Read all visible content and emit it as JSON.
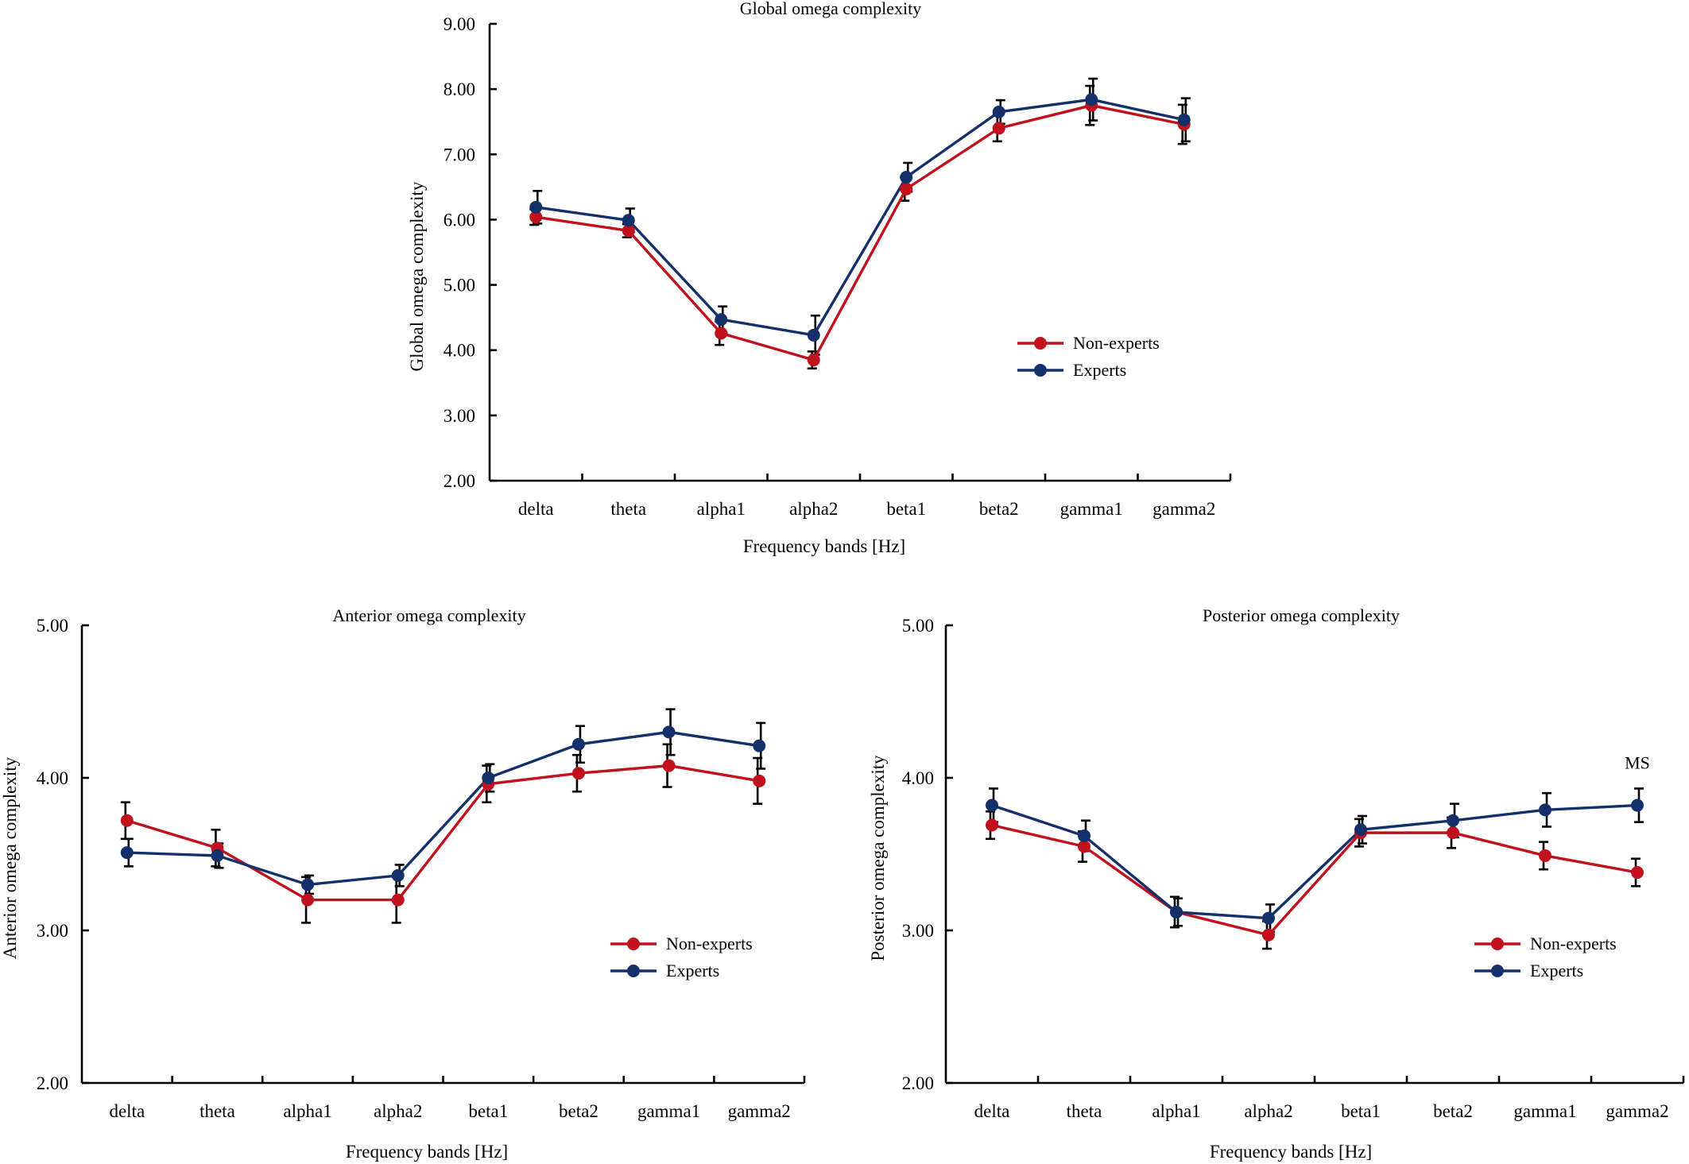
{
  "colors": {
    "non_experts": "#c0111d",
    "experts": "#13306a",
    "axis": "#000000",
    "error_bar": "#000000"
  },
  "chart_data": [
    {
      "id": "global",
      "type": "line",
      "title": "Global omega complexity",
      "xlabel": "Frequency bands [Hz]",
      "ylabel": "Global omega complexity",
      "categories": [
        "delta",
        "theta",
        "alpha1",
        "alpha2",
        "beta1",
        "beta2",
        "gamma1",
        "gamma2"
      ],
      "ylim": [
        2,
        9
      ],
      "yticks": [
        2,
        3,
        4,
        5,
        6,
        7,
        8,
        9
      ],
      "ytick_labels": [
        "2.00",
        "3.00",
        "4.00",
        "5.00",
        "6.00",
        "7.00",
        "8.00",
        "9.00"
      ],
      "legend_position": "right-middle",
      "series": [
        {
          "name": "Non-experts",
          "color_key": "non_experts",
          "values": [
            6.04,
            5.83,
            4.26,
            3.85,
            6.47,
            7.4,
            7.75,
            7.46
          ],
          "errors": [
            0.12,
            0.1,
            0.18,
            0.13,
            0.18,
            0.2,
            0.3,
            0.3
          ]
        },
        {
          "name": "Experts",
          "color_key": "experts",
          "values": [
            6.19,
            5.99,
            4.47,
            4.23,
            6.65,
            7.65,
            7.84,
            7.53
          ],
          "errors": [
            0.25,
            0.18,
            0.2,
            0.3,
            0.22,
            0.18,
            0.32,
            0.33
          ]
        }
      ],
      "annotations": []
    },
    {
      "id": "anterior",
      "type": "line",
      "title": "Anterior omega complexity",
      "xlabel": "Frequency bands [Hz]",
      "ylabel": "Anterior omega complexity",
      "categories": [
        "delta",
        "theta",
        "alpha1",
        "alpha2",
        "beta1",
        "beta2",
        "gamma1",
        "gamma2"
      ],
      "ylim": [
        2,
        5
      ],
      "yticks": [
        2,
        3,
        4,
        5
      ],
      "ytick_labels": [
        "2.00",
        "3.00",
        "4.00",
        "5.00"
      ],
      "legend_position": "right-middle",
      "series": [
        {
          "name": "Non-experts",
          "color_key": "non_experts",
          "values": [
            3.72,
            3.54,
            3.2,
            3.2,
            3.96,
            4.03,
            4.08,
            3.98
          ],
          "errors": [
            0.12,
            0.12,
            0.15,
            0.15,
            0.12,
            0.12,
            0.14,
            0.15
          ]
        },
        {
          "name": "Experts",
          "color_key": "experts",
          "values": [
            3.51,
            3.49,
            3.3,
            3.36,
            4.0,
            4.22,
            4.3,
            4.21
          ],
          "errors": [
            0.09,
            0.08,
            0.06,
            0.07,
            0.09,
            0.12,
            0.15,
            0.15
          ]
        }
      ],
      "annotations": []
    },
    {
      "id": "posterior",
      "type": "line",
      "title": "Posterior omega complexity",
      "xlabel": "Frequency bands [Hz]",
      "ylabel": "Posterior omega complexity",
      "categories": [
        "delta",
        "theta",
        "alpha1",
        "alpha2",
        "beta1",
        "beta2",
        "gamma1",
        "gamma2"
      ],
      "ylim": [
        2,
        5
      ],
      "yticks": [
        2,
        3,
        4,
        5
      ],
      "ytick_labels": [
        "2.00",
        "3.00",
        "4.00",
        "5.00"
      ],
      "legend_position": "right-middle",
      "series": [
        {
          "name": "Non-experts",
          "color_key": "non_experts",
          "values": [
            3.69,
            3.55,
            3.12,
            2.97,
            3.64,
            3.64,
            3.49,
            3.38
          ],
          "errors": [
            0.09,
            0.1,
            0.1,
            0.09,
            0.09,
            0.1,
            0.09,
            0.09
          ]
        },
        {
          "name": "Experts",
          "color_key": "experts",
          "values": [
            3.82,
            3.62,
            3.12,
            3.08,
            3.66,
            3.72,
            3.79,
            3.82
          ],
          "errors": [
            0.11,
            0.1,
            0.09,
            0.09,
            0.09,
            0.11,
            0.11,
            0.11
          ]
        }
      ],
      "annotations": [
        {
          "text": "MS",
          "category": "gamma2",
          "y": 4.06
        }
      ]
    }
  ]
}
